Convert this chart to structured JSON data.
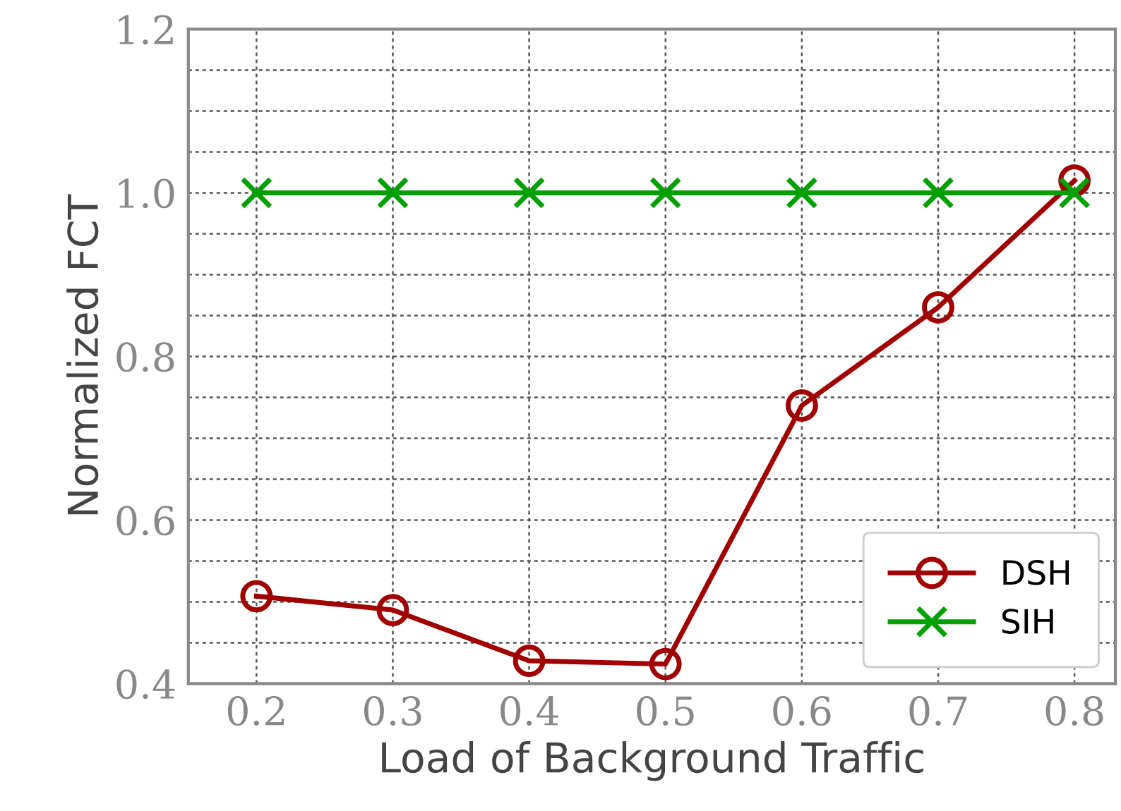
{
  "chart_data": {
    "type": "line",
    "xlabel": "Load of Background Traffic",
    "ylabel": "Normalized FCT",
    "x": [
      0.2,
      0.3,
      0.4,
      0.5,
      0.6,
      0.7,
      0.8
    ],
    "series": [
      {
        "name": "DSH",
        "color": "#a00000",
        "marker": "circle",
        "values": [
          0.507,
          0.49,
          0.428,
          0.424,
          0.74,
          0.86,
          1.015
        ]
      },
      {
        "name": "SIH",
        "color": "#00a000",
        "marker": "cross",
        "values": [
          1.0,
          1.0,
          1.0,
          1.0,
          1.0,
          1.0,
          1.0
        ]
      }
    ],
    "xlim": [
      0.15,
      0.83
    ],
    "ylim": [
      0.4,
      1.2
    ],
    "xticks": [
      0.2,
      0.3,
      0.4,
      0.5,
      0.6,
      0.7,
      0.8
    ],
    "yticks": [
      0.4,
      {
        "value": 0.45,
        "label": null
      },
      {
        "value": 0.5,
        "label": null
      },
      {
        "value": 0.55,
        "label": null
      },
      0.6,
      {
        "value": 0.65,
        "label": null
      },
      {
        "value": 0.7,
        "label": null
      },
      {
        "value": 0.75,
        "label": null
      },
      0.8,
      {
        "value": 0.85,
        "label": null
      },
      {
        "value": 0.9,
        "label": null
      },
      {
        "value": 0.95,
        "label": null
      },
      {
        "value": 1.0,
        "label": "1.0"
      },
      {
        "value": 1.05,
        "label": null
      },
      {
        "value": 1.1,
        "label": null
      },
      {
        "value": 1.15,
        "label": null
      },
      1.2
    ],
    "grid": true,
    "legend": "bottom right",
    "line_style": "solid"
  }
}
